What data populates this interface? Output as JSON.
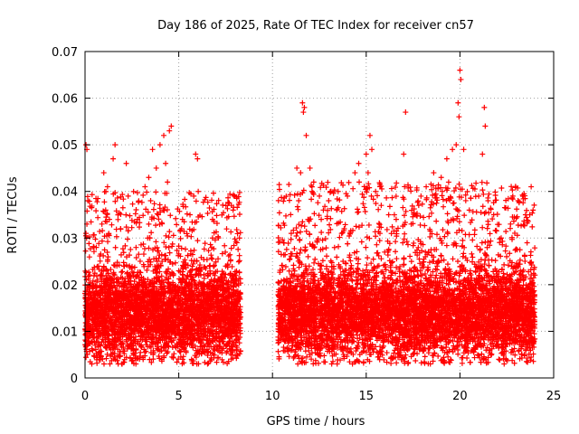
{
  "chart_data": {
    "type": "scatter",
    "title": "Day 186 of 2025, Rate Of TEC Index for receiver cn57",
    "xlabel": "GPS time / hours",
    "ylabel": "ROTI / TECUs",
    "xlim": [
      0,
      25
    ],
    "ylim": [
      0,
      0.07
    ],
    "xticks": [
      0,
      5,
      10,
      15,
      20,
      25
    ],
    "yticks": [
      0,
      0.01,
      0.02,
      0.03,
      0.04,
      0.05,
      0.06,
      0.07
    ],
    "xtick_labels": [
      "0",
      "5",
      "10",
      "15",
      "20",
      "25"
    ],
    "ytick_labels": [
      "0",
      "0.01",
      "0.02",
      "0.03",
      "0.04",
      "0.05",
      "0.06",
      "0.07"
    ],
    "grid": true,
    "marker": "+",
    "series_color": "#ff0000",
    "data_gap_hours": [
      8.3,
      10.3
    ],
    "series": [
      {
        "name": "ROTI",
        "points": [
          [
            0.05,
            0.05
          ],
          [
            0.1,
            0.049
          ],
          [
            0.15,
            0.038
          ],
          [
            0.05,
            0.031
          ],
          [
            0.1,
            0.033
          ],
          [
            0.6,
            0.028
          ],
          [
            0.9,
            0.033
          ],
          [
            1.0,
            0.044
          ],
          [
            1.1,
            0.036
          ],
          [
            1.2,
            0.041
          ],
          [
            1.5,
            0.047
          ],
          [
            1.6,
            0.05
          ],
          [
            1.9,
            0.032
          ],
          [
            2.2,
            0.046
          ],
          [
            2.3,
            0.039
          ],
          [
            2.8,
            0.034
          ],
          [
            3.2,
            0.041
          ],
          [
            3.4,
            0.043
          ],
          [
            3.6,
            0.049
          ],
          [
            3.8,
            0.045
          ],
          [
            4.0,
            0.05
          ],
          [
            4.2,
            0.052
          ],
          [
            4.3,
            0.046
          ],
          [
            4.5,
            0.053
          ],
          [
            4.6,
            0.054
          ],
          [
            4.4,
            0.042
          ],
          [
            3.5,
            0.038
          ],
          [
            3.9,
            0.035
          ],
          [
            5.2,
            0.034
          ],
          [
            5.6,
            0.035
          ],
          [
            5.9,
            0.048
          ],
          [
            6.0,
            0.047
          ],
          [
            5.8,
            0.039
          ],
          [
            6.8,
            0.03
          ],
          [
            7.8,
            0.037
          ],
          [
            7.9,
            0.036
          ],
          [
            8.1,
            0.029
          ],
          [
            10.6,
            0.029
          ],
          [
            11.0,
            0.031
          ],
          [
            11.3,
            0.045
          ],
          [
            11.4,
            0.038
          ],
          [
            11.6,
            0.059
          ],
          [
            11.7,
            0.058
          ],
          [
            11.65,
            0.057
          ],
          [
            11.8,
            0.052
          ],
          [
            11.5,
            0.044
          ],
          [
            12.0,
            0.045
          ],
          [
            12.2,
            0.042
          ],
          [
            12.6,
            0.034
          ],
          [
            13.0,
            0.038
          ],
          [
            13.5,
            0.04
          ],
          [
            14.0,
            0.039
          ],
          [
            14.4,
            0.044
          ],
          [
            14.6,
            0.046
          ],
          [
            15.0,
            0.048
          ],
          [
            15.1,
            0.044
          ],
          [
            15.2,
            0.052
          ],
          [
            15.3,
            0.049
          ],
          [
            15.5,
            0.04
          ],
          [
            15.8,
            0.037
          ],
          [
            16.2,
            0.035
          ],
          [
            16.6,
            0.034
          ],
          [
            17.0,
            0.048
          ],
          [
            17.1,
            0.057
          ],
          [
            17.4,
            0.033
          ],
          [
            17.8,
            0.037
          ],
          [
            18.2,
            0.041
          ],
          [
            18.6,
            0.044
          ],
          [
            19.0,
            0.043
          ],
          [
            19.3,
            0.047
          ],
          [
            19.6,
            0.049
          ],
          [
            19.8,
            0.05
          ],
          [
            19.9,
            0.059
          ],
          [
            20.0,
            0.066
          ],
          [
            20.05,
            0.064
          ],
          [
            19.95,
            0.056
          ],
          [
            20.2,
            0.049
          ],
          [
            20.5,
            0.036
          ],
          [
            21.0,
            0.039
          ],
          [
            21.2,
            0.048
          ],
          [
            21.3,
            0.058
          ],
          [
            21.35,
            0.054
          ],
          [
            21.5,
            0.038
          ],
          [
            21.8,
            0.035
          ],
          [
            22.2,
            0.03
          ],
          [
            22.7,
            0.033
          ],
          [
            23.1,
            0.038
          ],
          [
            23.5,
            0.035
          ],
          [
            23.8,
            0.041
          ],
          [
            23.9,
            0.036
          ]
        ]
      }
    ],
    "dense_band": {
      "description": "continuous high-density band of samples",
      "segments": [
        {
          "x_start": 0.0,
          "x_end": 8.3,
          "y_min": 0.003,
          "y_max": 0.028,
          "y_center": 0.014
        },
        {
          "x_start": 10.3,
          "x_end": 24.0,
          "y_min": 0.003,
          "y_max": 0.03,
          "y_center": 0.014
        }
      ]
    }
  }
}
